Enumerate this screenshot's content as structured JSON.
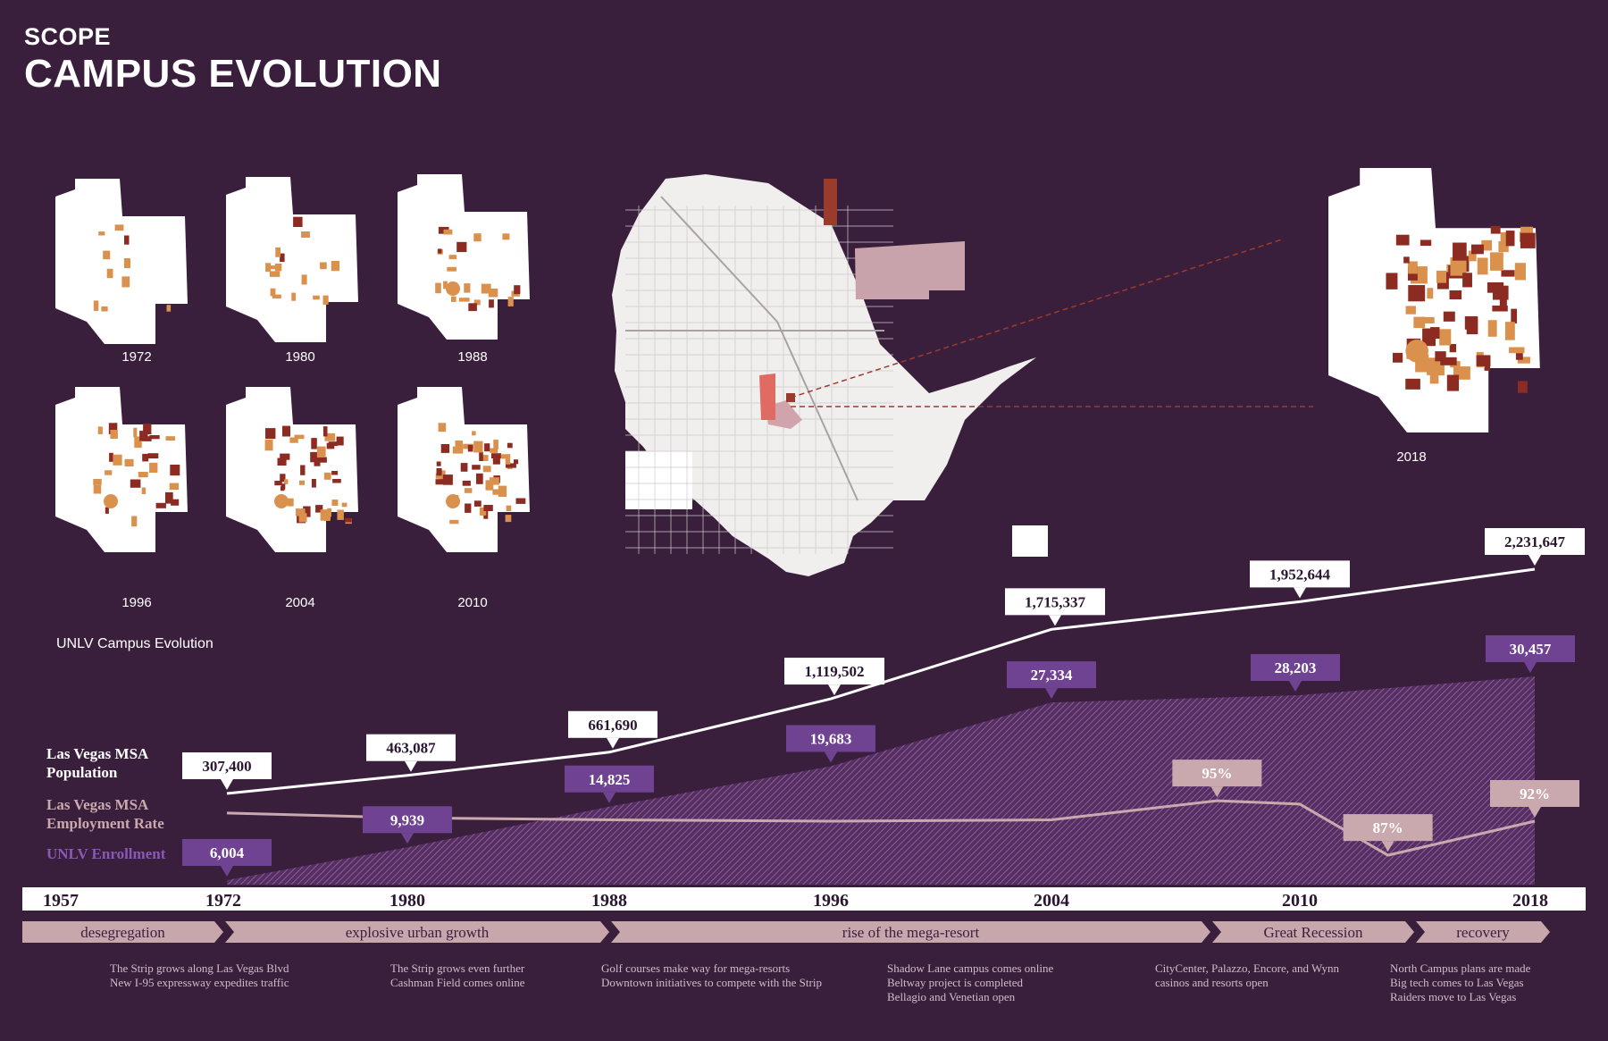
{
  "header": {
    "section": "SCOPE",
    "title": "CAMPUS EVOLUTION"
  },
  "campus_maps": {
    "caption": "UNLV Campus Evolution",
    "years": [
      "1972",
      "1980",
      "1988",
      "1996",
      "2004",
      "2010",
      "2018"
    ]
  },
  "colors": {
    "background": "#3a1f3d",
    "population_line": "#ffffff",
    "employment_line": "#c9a9ad",
    "enrollment_fill": "#6b3f86",
    "enrollment_label": "#6f4391",
    "era_band": "#c7a7ab",
    "building_light": "#d9914d",
    "building_dark": "#8b2b22"
  },
  "chart_data": {
    "type": "line",
    "title": "",
    "xlabel": "",
    "ylabel": "",
    "x_ticks": [
      "1957",
      "1972",
      "1980",
      "1988",
      "1996",
      "2004",
      "2010",
      "2018"
    ],
    "series": [
      {
        "name": "Las Vegas MSA Population",
        "style": "line",
        "points": [
          {
            "x": 1972,
            "y": 307400,
            "label": "307,400"
          },
          {
            "x": 1980,
            "y": 463087,
            "label": "463,087"
          },
          {
            "x": 1988,
            "y": 661690,
            "label": "661,690"
          },
          {
            "x": 1996,
            "y": 1119502,
            "label": "1,119,502"
          },
          {
            "x": 2004,
            "y": 1715337,
            "label": "1,715,337"
          },
          {
            "x": 2010,
            "y": 1952644,
            "label": "1,952,644"
          },
          {
            "x": 2018,
            "y": 2231647,
            "label": "2,231,647"
          }
        ]
      },
      {
        "name": "Las Vegas MSA Employment Rate",
        "style": "line",
        "points": [
          {
            "x": 1972,
            "y": 93.2
          },
          {
            "x": 1980,
            "y": 92.5
          },
          {
            "x": 1988,
            "y": 92.2
          },
          {
            "x": 1996,
            "y": 92.0
          },
          {
            "x": 2004,
            "y": 92.2
          },
          {
            "x": 2008,
            "y": 95,
            "label": "95%"
          },
          {
            "x": 2010,
            "y": 94.5
          },
          {
            "x": 2013,
            "y": 87,
            "label": "87%"
          },
          {
            "x": 2018,
            "y": 92,
            "label": "92%"
          }
        ]
      },
      {
        "name": "UNLV Enrollment",
        "style": "area",
        "points": [
          {
            "x": 1972,
            "y": 6004,
            "label": "6,004"
          },
          {
            "x": 1980,
            "y": 9939,
            "label": "9,939"
          },
          {
            "x": 1988,
            "y": 14825,
            "label": "14,825"
          },
          {
            "x": 1996,
            "y": 19683,
            "label": "19,683"
          },
          {
            "x": 2004,
            "y": 27334,
            "label": "27,334"
          },
          {
            "x": 2010,
            "y": 28203,
            "label": "28,203"
          },
          {
            "x": 2018,
            "y": 30457,
            "label": "30,457"
          }
        ]
      }
    ],
    "eras": [
      {
        "label": "desegregation",
        "events": [
          "The Strip grows along Las Vegas Blvd",
          "New I-95 expressway expedites traffic"
        ]
      },
      {
        "label": "explosive urban growth",
        "events": [
          "The Strip grows even further",
          "Cashman Field comes online"
        ]
      },
      {
        "label": "rise of the mega-resort",
        "events": [
          "Golf courses make way for mega-resorts",
          "Downtown initiatives to compete with the Strip"
        ]
      },
      {
        "label": "",
        "events": [
          "Shadow Lane campus comes online",
          "Beltway project is completed",
          "Bellagio and Venetian open"
        ]
      },
      {
        "label": "Great Recession",
        "events": [
          "CityCenter, Palazzo, Encore, and Wynn",
          "casinos and resorts open"
        ]
      },
      {
        "label": "recovery",
        "events": [
          "North Campus plans are made",
          "Big tech comes to Las Vegas",
          "Raiders move to Las Vegas"
        ]
      }
    ]
  }
}
